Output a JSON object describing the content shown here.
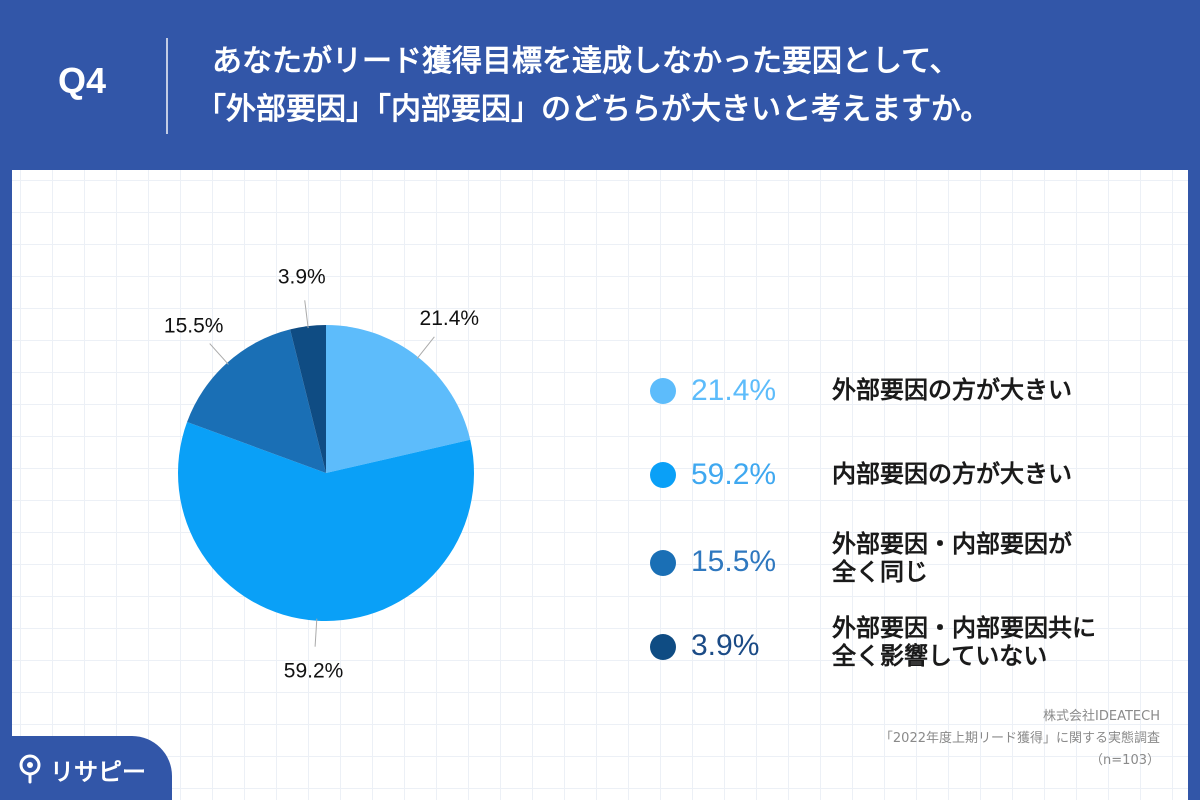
{
  "header": {
    "q_number": "Q4",
    "question_line1": "あなたがリード獲得目標を達成しなかった要因として、",
    "question_line2": "「外部要因」「内部要因」のどちらが大きいと考えますか。"
  },
  "chart_data": {
    "type": "pie",
    "title": "あなたがリード獲得目標を達成しなかった要因として、「外部要因」「内部要因」のどちらが大きいと考えますか。",
    "slices": [
      {
        "key": "external-larger",
        "label_lines": [
          "外部要因の方が大きい"
        ],
        "value": 21.4,
        "display": "21.4%",
        "color": "#5dbcfb"
      },
      {
        "key": "internal-larger",
        "label_lines": [
          "内部要因の方が大きい"
        ],
        "value": 59.2,
        "display": "59.2%",
        "color": "#0aa0f7"
      },
      {
        "key": "both-same",
        "label_lines": [
          "外部要因・内部要因が",
          "全く同じ"
        ],
        "value": 15.5,
        "display": "15.5%",
        "color": "#1a6fb5"
      },
      {
        "key": "no-impact",
        "label_lines": [
          "外部要因・内部要因共に",
          "全く影響していない"
        ],
        "value": 3.9,
        "display": "3.9%",
        "color": "#0f4c83"
      }
    ],
    "legend_pct_colors": [
      "#5dbcfb",
      "#3fa8f0",
      "#2f78bf",
      "#1b4b86"
    ]
  },
  "source": {
    "company": "株式会社IDEATECH",
    "survey": "「2022年度上期リード獲得」に関する実態調査",
    "sample": "（n=103）"
  },
  "logo": {
    "text": "リサピー"
  }
}
